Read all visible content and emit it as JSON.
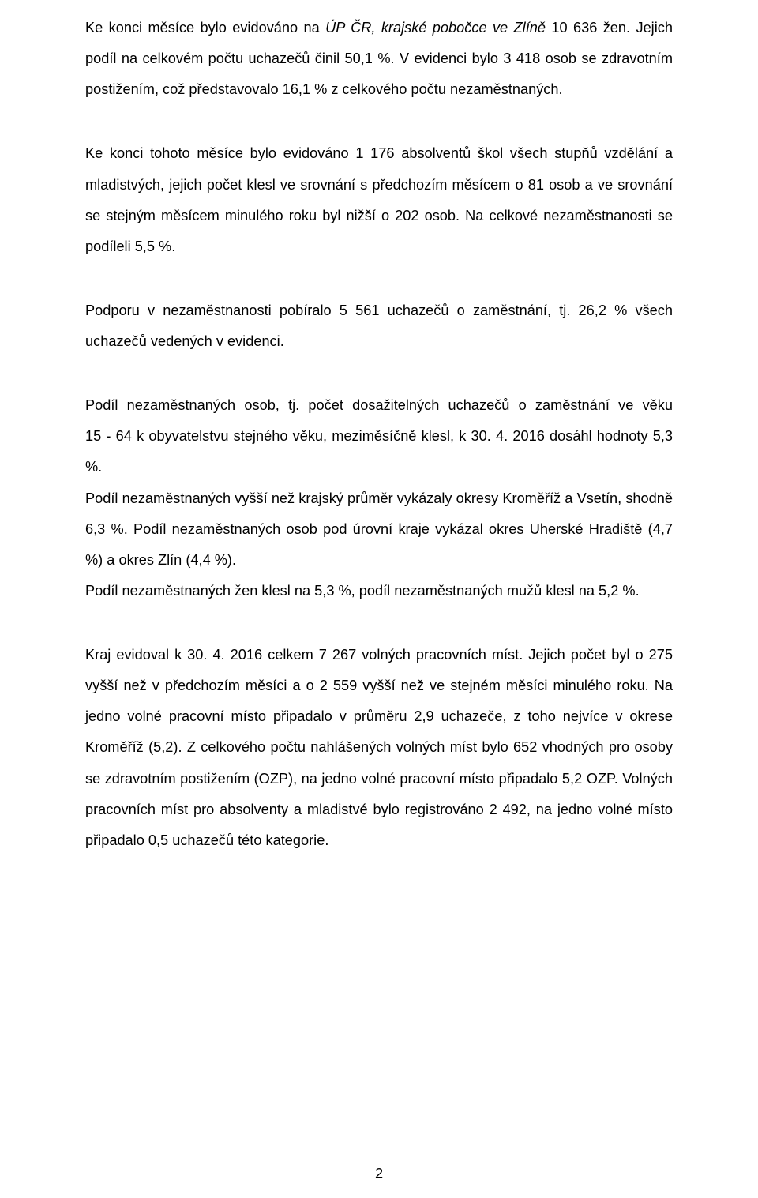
{
  "paragraphs": {
    "p1_a": "Ke konci měsíce bylo evidováno na ",
    "p1_italic": "ÚP ČR, krajské pobočce ve Zlíně",
    "p1_b": " 10 636 žen. Jejich podíl na celkovém počtu uchazečů činil 50,1 %. V evidenci bylo 3 418 osob se zdravotním postižením, což představovalo 16,1 % z celkového počtu nezaměstnaných.",
    "p2": "Ke konci tohoto měsíce bylo evidováno 1 176 absolventů škol všech stupňů vzdělání a mladistvých, jejich počet klesl ve srovnání s předchozím měsícem o 81 osob a ve srovnání se stejným měsícem minulého roku byl nižší o 202 osob. Na celkové nezaměstnanosti se podíleli 5,5 %.",
    "p3": "Podporu v nezaměstnanosti pobíralo 5 561 uchazečů o zaměstnání, tj. 26,2 % všech uchazečů vedených v evidenci.",
    "p4_a": "Podíl nezaměstnaných osob, tj. počet dosažitelných uchazečů o zaměstnání ve věku ",
    "p4_nowrap": "15 - 64",
    "p4_b": " k obyvatelstvu stejného věku, meziměsíčně klesl, k 30. 4. 2016 dosáhl hodnoty 5,3 %.",
    "p4_c": "Podíl nezaměstnaných vyšší než krajský průměr vykázaly okresy Kroměříž a Vsetín, shodně 6,3 %. Podíl nezaměstnaných osob pod úrovní kraje vykázal okres Uherské Hradiště (4,7 %) a okres Zlín (4,4 %).",
    "p4_d": "Podíl nezaměstnaných žen klesl na 5,3 %, podíl nezaměstnaných mužů klesl na 5,2 %.",
    "p5": "Kraj evidoval k 30. 4. 2016 celkem 7 267 volných pracovních míst. Jejich počet byl o 275 vyšší než v předchozím měsíci a o 2 559 vyšší než ve stejném měsíci minulého roku. Na jedno volné pracovní místo připadalo v průměru 2,9 uchazeče, z toho nejvíce v okrese Kroměříž (5,2).  Z celkového počtu nahlášených volných míst bylo 652 vhodných pro osoby se zdravotním postižením (OZP), na jedno volné pracovní místo připadalo 5,2 OZP. Volných pracovních míst pro absolventy a mladistvé bylo registrováno 2 492, na jedno volné místo připadalo 0,5 uchazečů této kategorie."
  },
  "page_number": "2"
}
